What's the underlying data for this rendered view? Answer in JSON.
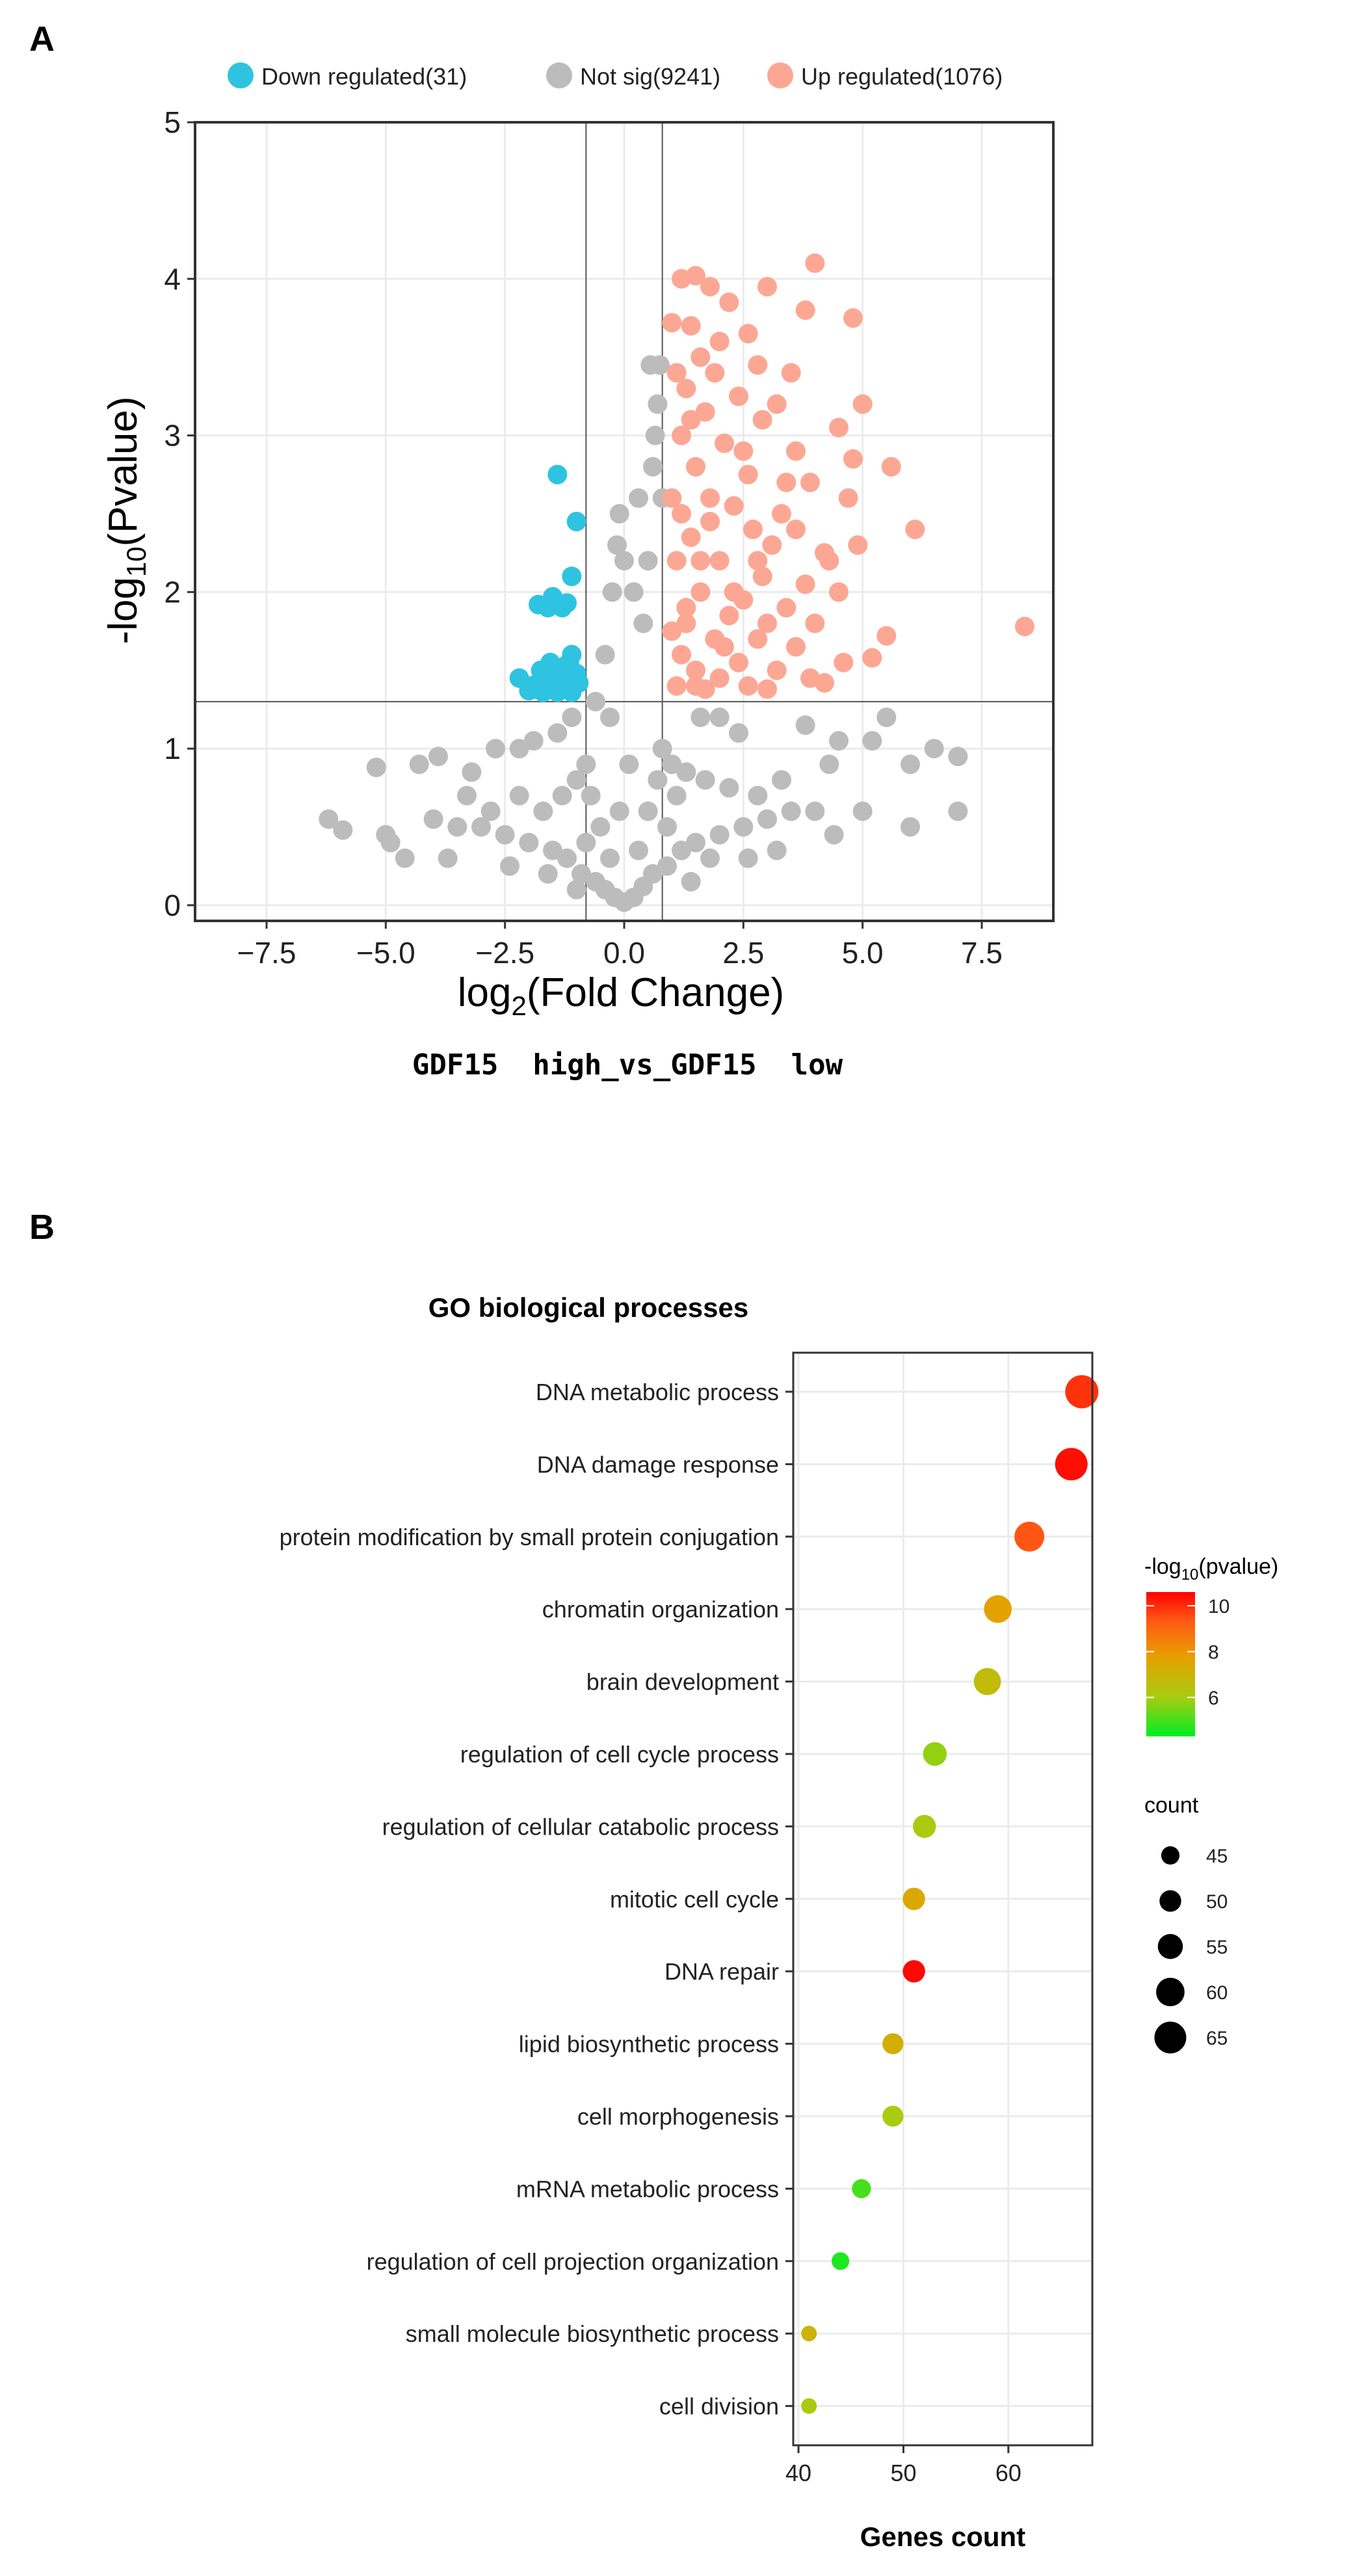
{
  "panel_labels": {
    "a": "A",
    "b": "B"
  },
  "chart_data": [
    {
      "type": "scatter",
      "caption": "GDF15  high_vs_GDF15  low",
      "xlabel": {
        "main": "log",
        "sub": "2",
        "rest": "(Fold Change)"
      },
      "ylabel": {
        "main": "-log",
        "sub": "10",
        "rest": "(Pvalue)"
      },
      "xlim": [
        -9,
        9
      ],
      "ylim": [
        -0.1,
        5
      ],
      "x_ticks": [
        -7.5,
        -5.0,
        -2.5,
        0.0,
        2.5,
        5.0,
        7.5
      ],
      "x_tick_labels": [
        "−7.5",
        "−5.0",
        "−2.5",
        "0.0",
        "2.5",
        "5.0",
        "7.5"
      ],
      "y_ticks": [
        0,
        1,
        2,
        3,
        4,
        5
      ],
      "y_tick_labels": [
        "0",
        "1",
        "2",
        "3",
        "4",
        "5"
      ],
      "grid": true,
      "legend_position": "top",
      "thresholds": {
        "pvalue_line_y": 1.3,
        "fc_lines_x": [
          -0.8,
          0.8
        ]
      },
      "series": [
        {
          "name": "Down regulated(31)",
          "color": "#2ec3e0",
          "points": [
            [
              -1.4,
              2.75
            ],
            [
              -1.0,
              2.45
            ],
            [
              -1.1,
              2.1
            ],
            [
              -1.5,
              1.97
            ],
            [
              -1.2,
              1.93
            ],
            [
              -1.8,
              1.92
            ],
            [
              -1.6,
              1.9
            ],
            [
              -1.3,
              1.9
            ],
            [
              -1.45,
              1.92
            ],
            [
              -1.1,
              1.6
            ],
            [
              -1.3,
              1.52
            ],
            [
              -1.6,
              1.48
            ],
            [
              -2.2,
              1.45
            ],
            [
              -1.8,
              1.42
            ],
            [
              -1.0,
              1.48
            ],
            [
              -1.5,
              1.4
            ],
            [
              -1.2,
              1.38
            ],
            [
              -1.7,
              1.36
            ],
            [
              -1.95,
              1.4
            ],
            [
              -1.35,
              1.43
            ],
            [
              -1.05,
              1.4
            ],
            [
              -1.55,
              1.55
            ],
            [
              -1.25,
              1.45
            ],
            [
              -1.85,
              1.38
            ],
            [
              -0.95,
              1.42
            ],
            [
              -1.15,
              1.55
            ],
            [
              -1.65,
              1.44
            ],
            [
              -1.4,
              1.36
            ],
            [
              -2.0,
              1.37
            ],
            [
              -1.75,
              1.5
            ],
            [
              -1.1,
              1.36
            ]
          ]
        },
        {
          "name": "Not sig(9241)",
          "color": "#bcbcbc",
          "points": [
            [
              0,
              0.02
            ],
            [
              -0.2,
              0.05
            ],
            [
              0.2,
              0.05
            ],
            [
              -0.4,
              0.1
            ],
            [
              0.4,
              0.12
            ],
            [
              -0.6,
              0.15
            ],
            [
              0.6,
              0.2
            ],
            [
              -0.9,
              0.2
            ],
            [
              0.9,
              0.25
            ],
            [
              -1.2,
              0.3
            ],
            [
              1.2,
              0.35
            ],
            [
              -1.5,
              0.35
            ],
            [
              1.5,
              0.4
            ],
            [
              -2.0,
              0.4
            ],
            [
              2.0,
              0.45
            ],
            [
              -2.5,
              0.45
            ],
            [
              2.5,
              0.5
            ],
            [
              -3.0,
              0.5
            ],
            [
              3.0,
              0.55
            ],
            [
              -3.5,
              0.5
            ],
            [
              3.5,
              0.6
            ],
            [
              -4.0,
              0.55
            ],
            [
              4.0,
              0.6
            ],
            [
              -5.0,
              0.45
            ],
            [
              5.0,
              0.6
            ],
            [
              -5.9,
              0.48
            ],
            [
              -4.9,
              0.4
            ],
            [
              -6.2,
              0.55
            ],
            [
              6.0,
              0.5
            ],
            [
              7.0,
              0.6
            ],
            [
              -0.3,
              0.3
            ],
            [
              0.3,
              0.35
            ],
            [
              -0.5,
              0.5
            ],
            [
              0.5,
              0.6
            ],
            [
              -0.7,
              0.7
            ],
            [
              0.7,
              0.8
            ],
            [
              -0.8,
              0.9
            ],
            [
              0.8,
              1.0
            ],
            [
              -1.0,
              0.8
            ],
            [
              1.0,
              0.9
            ],
            [
              -1.3,
              0.7
            ],
            [
              1.3,
              0.85
            ],
            [
              -1.7,
              0.6
            ],
            [
              1.7,
              0.8
            ],
            [
              -2.2,
              0.7
            ],
            [
              2.2,
              0.75
            ],
            [
              -2.8,
              0.6
            ],
            [
              2.8,
              0.7
            ],
            [
              -3.3,
              0.7
            ],
            [
              3.3,
              0.8
            ],
            [
              -4.3,
              0.9
            ],
            [
              4.3,
              0.9
            ],
            [
              -5.2,
              0.88
            ],
            [
              5.5,
              1.2
            ],
            [
              6.0,
              0.9
            ],
            [
              6.5,
              1.0
            ],
            [
              7.0,
              0.95
            ],
            [
              3.8,
              1.15
            ],
            [
              4.5,
              1.05
            ],
            [
              5.2,
              1.05
            ],
            [
              2.4,
              1.1
            ],
            [
              2.0,
              1.2
            ],
            [
              1.6,
              1.2
            ],
            [
              -2.2,
              1.0
            ],
            [
              -2.7,
              1.0
            ],
            [
              -3.2,
              0.85
            ],
            [
              -3.9,
              0.95
            ],
            [
              -1.9,
              1.05
            ],
            [
              -1.4,
              1.1
            ],
            [
              -1.1,
              1.2
            ],
            [
              -0.6,
              1.3
            ],
            [
              -0.4,
              1.6
            ],
            [
              -0.25,
              2.0
            ],
            [
              -0.15,
              2.3
            ],
            [
              -0.1,
              2.5
            ],
            [
              0.0,
              2.2
            ],
            [
              0.2,
              2.0
            ],
            [
              0.3,
              2.6
            ],
            [
              0.5,
              2.2
            ],
            [
              0.6,
              2.8
            ],
            [
              0.65,
              3.0
            ],
            [
              0.7,
              3.2
            ],
            [
              0.55,
              3.45
            ],
            [
              0.75,
              3.45
            ],
            [
              0.8,
              2.6
            ],
            [
              0.4,
              1.8
            ],
            [
              -0.3,
              1.2
            ],
            [
              0.1,
              0.9
            ],
            [
              -0.1,
              0.6
            ],
            [
              0.9,
              0.5
            ],
            [
              1.1,
              0.7
            ],
            [
              -0.8,
              0.4
            ],
            [
              -1.6,
              0.2
            ],
            [
              1.8,
              0.3
            ],
            [
              2.6,
              0.3
            ],
            [
              -2.4,
              0.25
            ],
            [
              3.2,
              0.35
            ],
            [
              -3.7,
              0.3
            ],
            [
              4.4,
              0.45
            ],
            [
              -4.6,
              0.3
            ],
            [
              1.4,
              0.15
            ],
            [
              -1.0,
              0.1
            ]
          ]
        },
        {
          "name": "Up regulated(1076)",
          "color": "#fca794",
          "points": [
            [
              1.5,
              4.02
            ],
            [
              1.2,
              4.0
            ],
            [
              1.8,
              3.95
            ],
            [
              2.2,
              3.85
            ],
            [
              3.0,
              3.95
            ],
            [
              4.0,
              4.1
            ],
            [
              3.8,
              3.8
            ],
            [
              4.8,
              3.75
            ],
            [
              1.0,
              3.72
            ],
            [
              1.4,
              3.7
            ],
            [
              2.6,
              3.65
            ],
            [
              2.0,
              3.6
            ],
            [
              1.6,
              3.5
            ],
            [
              2.8,
              3.45
            ],
            [
              1.1,
              3.4
            ],
            [
              3.5,
              3.4
            ],
            [
              1.3,
              3.3
            ],
            [
              2.4,
              3.25
            ],
            [
              3.2,
              3.2
            ],
            [
              5.0,
              3.2
            ],
            [
              1.7,
              3.15
            ],
            [
              2.9,
              3.1
            ],
            [
              4.5,
              3.05
            ],
            [
              1.2,
              3.0
            ],
            [
              2.1,
              2.95
            ],
            [
              3.6,
              2.9
            ],
            [
              5.6,
              2.8
            ],
            [
              4.8,
              2.85
            ],
            [
              1.5,
              2.8
            ],
            [
              2.6,
              2.75
            ],
            [
              3.9,
              2.7
            ],
            [
              1.0,
              2.6
            ],
            [
              4.7,
              2.6
            ],
            [
              2.3,
              2.55
            ],
            [
              3.3,
              2.5
            ],
            [
              1.8,
              2.45
            ],
            [
              2.7,
              2.4
            ],
            [
              6.1,
              2.4
            ],
            [
              1.4,
              2.35
            ],
            [
              3.1,
              2.3
            ],
            [
              4.2,
              2.25
            ],
            [
              1.1,
              2.2
            ],
            [
              2.0,
              2.2
            ],
            [
              2.9,
              2.1
            ],
            [
              3.8,
              2.05
            ],
            [
              1.6,
              2.0
            ],
            [
              4.5,
              2.0
            ],
            [
              2.5,
              1.95
            ],
            [
              1.3,
              1.9
            ],
            [
              3.4,
              1.9
            ],
            [
              2.2,
              1.85
            ],
            [
              4.0,
              1.8
            ],
            [
              8.4,
              1.78
            ],
            [
              1.0,
              1.75
            ],
            [
              1.9,
              1.7
            ],
            [
              2.8,
              1.7
            ],
            [
              5.5,
              1.72
            ],
            [
              3.6,
              1.65
            ],
            [
              1.2,
              1.6
            ],
            [
              2.4,
              1.55
            ],
            [
              4.6,
              1.55
            ],
            [
              1.5,
              1.5
            ],
            [
              3.2,
              1.5
            ],
            [
              2.0,
              1.45
            ],
            [
              3.9,
              1.45
            ],
            [
              5.2,
              1.58
            ],
            [
              1.1,
              1.4
            ],
            [
              2.6,
              1.4
            ],
            [
              4.2,
              1.42
            ],
            [
              1.7,
              1.38
            ],
            [
              3.0,
              1.38
            ],
            [
              1.3,
              1.8
            ],
            [
              2.1,
              1.65
            ],
            [
              1.8,
              2.6
            ],
            [
              2.5,
              2.9
            ],
            [
              1.4,
              3.1
            ],
            [
              3.6,
              2.4
            ],
            [
              4.3,
              2.2
            ],
            [
              1.9,
              3.4
            ],
            [
              2.8,
              2.2
            ],
            [
              1.2,
              2.5
            ],
            [
              3.0,
              1.8
            ],
            [
              1.6,
              2.2
            ],
            [
              2.3,
              2.0
            ],
            [
              4.9,
              2.3
            ],
            [
              3.4,
              2.7
            ],
            [
              1.5,
              1.4
            ]
          ]
        }
      ]
    },
    {
      "type": "scatter",
      "title": "GO biological processes",
      "xlabel": "Genes count",
      "xlim": [
        39.5,
        68
      ],
      "x_ticks": [
        40,
        50,
        60
      ],
      "x_tick_labels": [
        "40",
        "50",
        "60"
      ],
      "grid": true,
      "legend_position": "right",
      "categories": [
        "DNA metabolic process",
        "DNA damage response",
        "protein modification by small protein conjugation",
        "chromatin organization",
        "brain development",
        "regulation of cell cycle process",
        "regulation of cellular catabolic process",
        "mitotic cell cycle",
        "DNA repair",
        "lipid biosynthetic process",
        "cell morphogenesis",
        "mRNA metabolic process",
        "regulation of cell projection organization",
        "small molecule biosynthetic process",
        "cell division"
      ],
      "genes_count": [
        67,
        66,
        62,
        59,
        58,
        53,
        52,
        51,
        51,
        49,
        49,
        46,
        44,
        41,
        41
      ],
      "neg_log10_pvalue": [
        9.9,
        10.4,
        9.4,
        7.7,
        6.7,
        5.8,
        6.1,
        7.5,
        10.5,
        7.2,
        6.0,
        5.0,
        4.6,
        7.0,
        6.1
      ],
      "colorbar": {
        "title": {
          "main": "-log",
          "sub": "10",
          "rest": "(pvalue)"
        },
        "range": [
          4.3,
          10.6
        ],
        "ticks": [
          6,
          8,
          10
        ],
        "tick_labels": [
          "6",
          "8",
          "10"
        ],
        "colors": [
          "#00ee22",
          "#a8cc10",
          "#e6a000",
          "#ff5a14",
          "#ff0000"
        ]
      },
      "size_legend": {
        "title": "count",
        "values": [
          45,
          50,
          55,
          60,
          65
        ],
        "labels": [
          "45",
          "50",
          "55",
          "60",
          "65"
        ]
      }
    }
  ]
}
